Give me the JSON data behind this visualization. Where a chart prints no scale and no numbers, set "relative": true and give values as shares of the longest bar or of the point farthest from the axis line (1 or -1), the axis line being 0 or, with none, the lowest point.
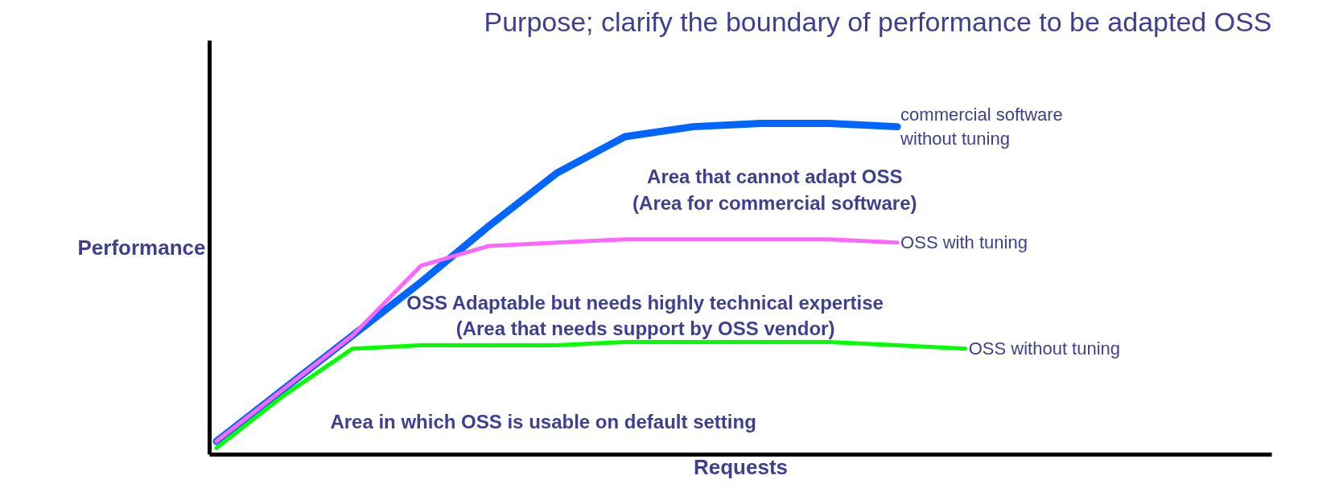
{
  "chart_data": {
    "type": "line",
    "relative": true,
    "title": "Purpose; clarify the boundary of performance to be adapted OSS",
    "xlabel": "Requests",
    "ylabel": "Performance",
    "categories": [
      null,
      null,
      null,
      null,
      null,
      null,
      null,
      null,
      null,
      null,
      null,
      null
    ],
    "series": [
      {
        "name": "commercial software\nwithout tuning",
        "color": "#0066ff",
        "values": [
          0.04,
          0.2,
          0.36,
          0.52,
          0.69,
          0.85,
          0.96,
          0.99,
          1.0,
          1.0,
          0.99,
          null
        ]
      },
      {
        "name": "OSS with tuning",
        "color": "#ff66ff",
        "values": [
          0.04,
          0.2,
          0.36,
          0.57,
          0.63,
          0.64,
          0.65,
          0.65,
          0.65,
          0.65,
          0.64,
          null
        ]
      },
      {
        "name": "OSS without tuning",
        "color": "#00ff00",
        "values": [
          0.02,
          0.18,
          0.32,
          0.33,
          0.33,
          0.33,
          0.34,
          0.34,
          0.34,
          0.34,
          0.33,
          0.32
        ]
      }
    ],
    "annotations": [
      "Area that cannot adapt OSS\n(Area for commercial software)",
      "OSS Adaptable but needs highly technical expertise\n(Area that needs support by OSS vendor)",
      "Area in which OSS is usable on default setting"
    ],
    "marker": "none",
    "line_style": "solid"
  }
}
